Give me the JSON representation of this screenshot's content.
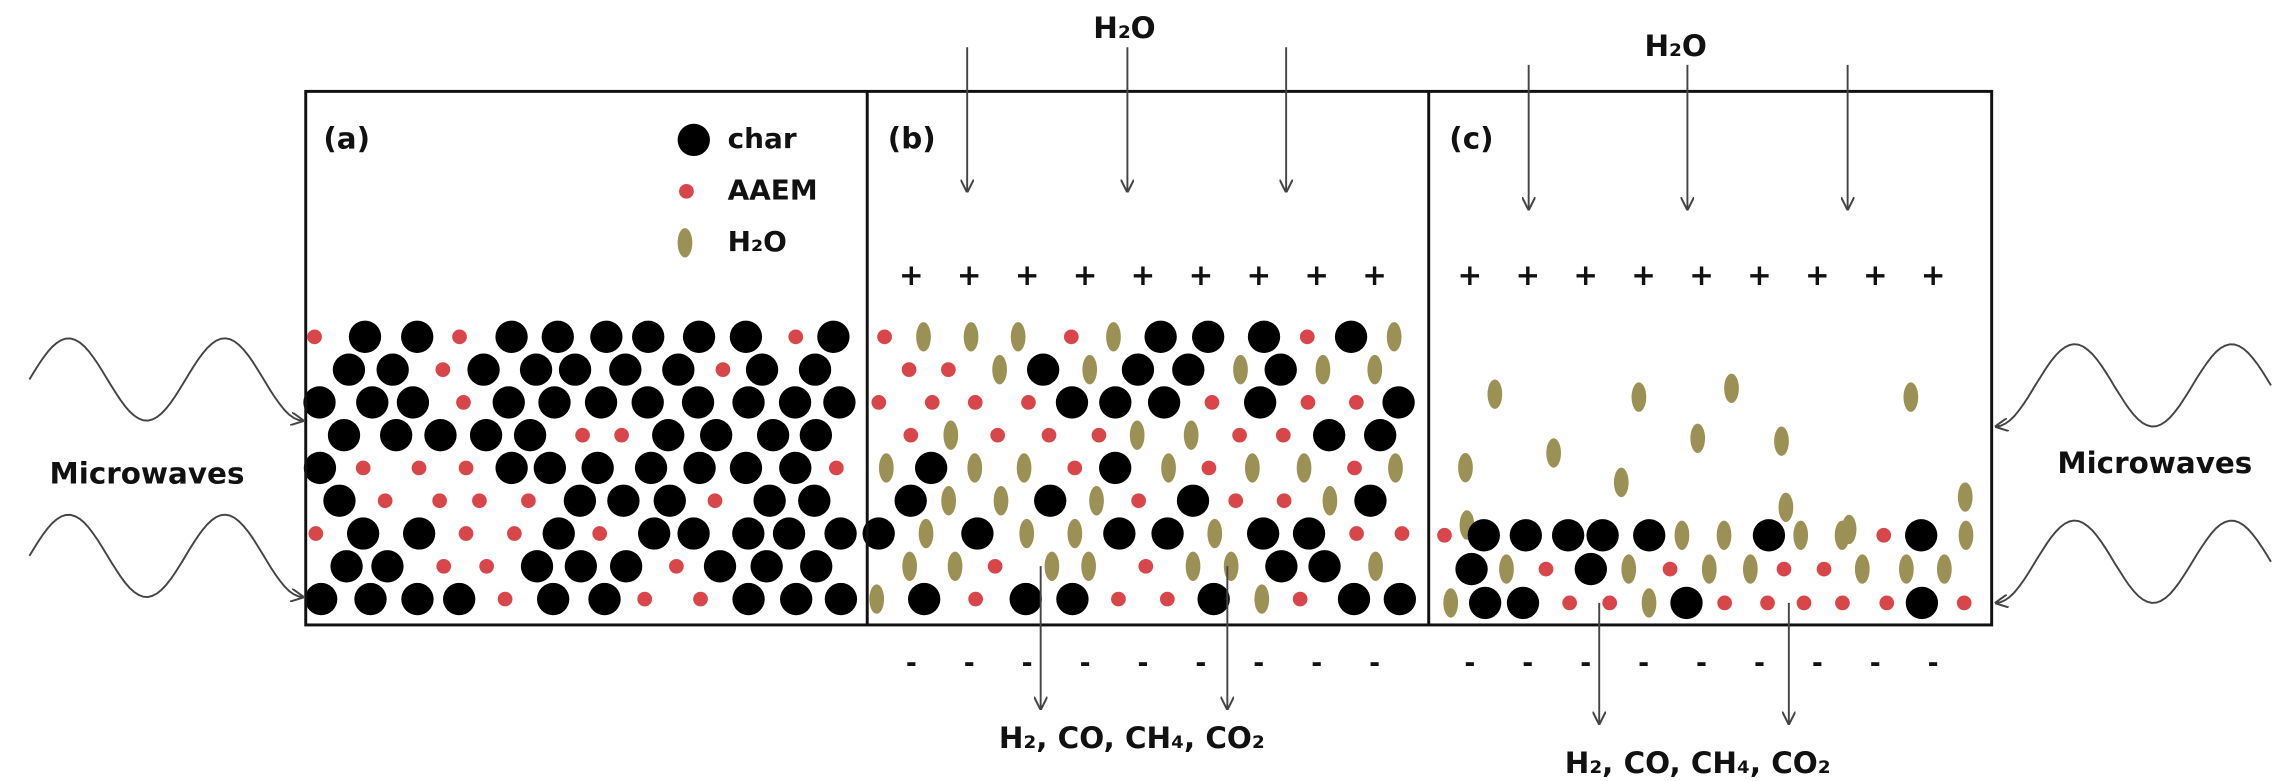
{
  "left_label": "Microwaves",
  "right_label": "Microwaves",
  "legend": [
    {
      "label": "char"
    },
    {
      "label": "AAEM"
    },
    {
      "label": "H₂O"
    }
  ],
  "panels": [
    {
      "label": "(a)"
    },
    {
      "label": "(b)",
      "input": "H₂O",
      "output": "H₂, CO, CH₄, CO₂"
    },
    {
      "label": "(c)",
      "input": "H₂O",
      "output": "H₂, CO, CH₄, CO₂"
    }
  ],
  "charge_positive": "+",
  "charge_negative": "-"
}
